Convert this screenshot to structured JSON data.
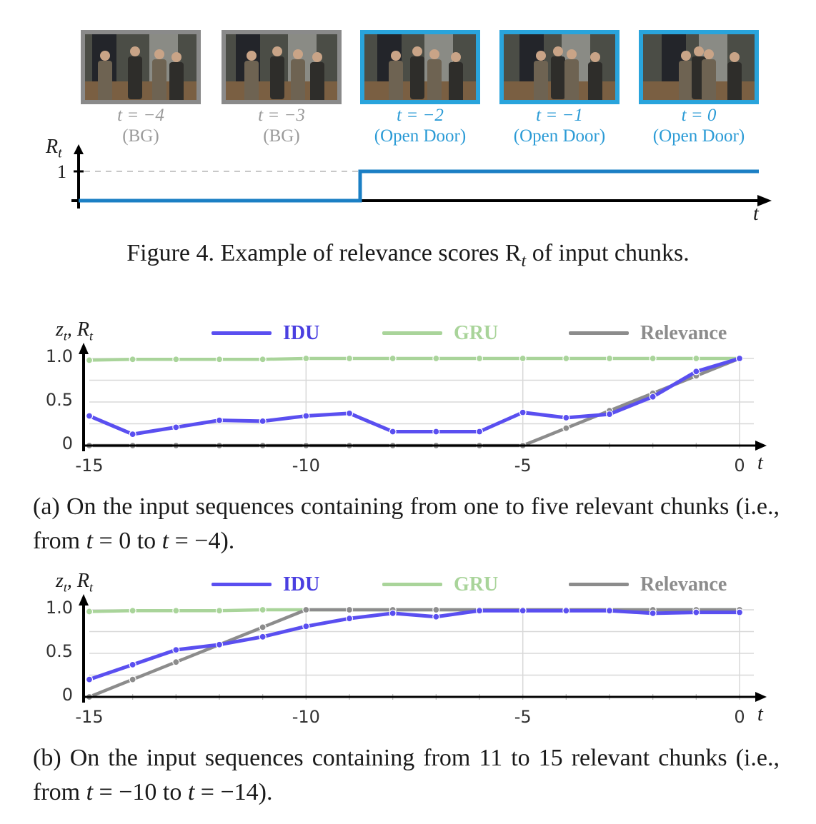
{
  "fig4": {
    "frames": [
      {
        "t": "t = −4",
        "label": "(BG)",
        "kind": "bg"
      },
      {
        "t": "t = −3",
        "label": "(BG)",
        "kind": "bg"
      },
      {
        "t": "t = −2",
        "label": "(Open Door)",
        "kind": "od"
      },
      {
        "t": "t = −1",
        "label": "(Open Door)",
        "kind": "od"
      },
      {
        "t": "t = 0",
        "label": "(Open Door)",
        "kind": "od"
      }
    ],
    "y_axis_label": "R",
    "y_axis_sub": "t",
    "y_tick": "1",
    "x_axis_label": "t",
    "caption": "Figure 4. Example of relevance scores R",
    "caption_sub": "t",
    "caption_tail": " of input chunks.",
    "step_values": [
      0,
      0,
      1,
      1,
      1
    ],
    "colors": {
      "bg_frame": "#8a8a8a",
      "od_frame": "#29a4dc",
      "step": "#1b7fc4"
    }
  },
  "chart_data": [
    {
      "type": "line",
      "title": "",
      "xlabel": "t",
      "ylabel": "z_t, R_t",
      "ylim": [
        0,
        1
      ],
      "xlim": [
        -15,
        0
      ],
      "xticks": [
        "-15",
        "-10",
        "-5",
        "0"
      ],
      "yticks": [
        "0",
        "0.5",
        "1.0"
      ],
      "grid": true,
      "legend_position": "top",
      "x": [
        -15,
        -14,
        -13,
        -12,
        -11,
        -10,
        -9,
        -8,
        -7,
        -6,
        -5,
        -4,
        -3,
        -2,
        -1,
        0
      ],
      "series": [
        {
          "name": "IDU",
          "color": "#5a4ff0",
          "values": [
            0.34,
            0.13,
            0.21,
            0.29,
            0.28,
            0.34,
            0.37,
            0.16,
            0.16,
            0.16,
            0.38,
            0.32,
            0.36,
            0.56,
            0.85,
            1.0
          ]
        },
        {
          "name": "GRU",
          "color": "#a9d49a",
          "values": [
            0.98,
            0.99,
            0.99,
            0.99,
            0.99,
            1.0,
            1.0,
            1.0,
            1.0,
            1.0,
            1.0,
            1.0,
            1.0,
            1.0,
            1.0,
            1.0
          ]
        },
        {
          "name": "Relevance",
          "color": "#8c8c8c",
          "values": [
            0,
            0,
            0,
            0,
            0,
            0,
            0,
            0,
            0,
            0,
            0,
            0.2,
            0.4,
            0.6,
            0.8,
            1.0
          ]
        }
      ],
      "caption_parts": [
        "(a) On the input sequences containing from one to five relevant chunks (i.e., from ",
        "t",
        " = 0 to ",
        "t",
        " = −4)."
      ]
    },
    {
      "type": "line",
      "title": "",
      "xlabel": "t",
      "ylabel": "z_t, R_t",
      "ylim": [
        0,
        1
      ],
      "xlim": [
        -15,
        0
      ],
      "xticks": [
        "-15",
        "-10",
        "-5",
        "0"
      ],
      "yticks": [
        "0",
        "0.5",
        "1.0"
      ],
      "grid": true,
      "legend_position": "top",
      "x": [
        -15,
        -14,
        -13,
        -12,
        -11,
        -10,
        -9,
        -8,
        -7,
        -6,
        -5,
        -4,
        -3,
        -2,
        -1,
        0
      ],
      "series": [
        {
          "name": "IDU",
          "color": "#5a4ff0",
          "values": [
            0.2,
            0.37,
            0.54,
            0.6,
            0.69,
            0.81,
            0.9,
            0.96,
            0.92,
            0.99,
            0.99,
            0.99,
            0.99,
            0.96,
            0.97,
            0.97
          ]
        },
        {
          "name": "GRU",
          "color": "#a9d49a",
          "values": [
            0.98,
            0.99,
            0.99,
            0.99,
            1.0,
            1.0,
            1.0,
            1.0,
            1.0,
            1.0,
            1.0,
            1.0,
            1.0,
            1.0,
            1.0,
            1.0
          ]
        },
        {
          "name": "Relevance",
          "color": "#8c8c8c",
          "values": [
            0,
            0.2,
            0.4,
            0.6,
            0.8,
            1.0,
            1.0,
            1.0,
            1.0,
            1.0,
            1.0,
            1.0,
            1.0,
            1.0,
            1.0,
            1.0
          ]
        }
      ],
      "caption_parts": [
        "(b) On the input sequences containing from 11 to 15 relevant chunks (i.e., from ",
        "t",
        " = −10 to ",
        "t",
        " = −14)."
      ]
    }
  ]
}
